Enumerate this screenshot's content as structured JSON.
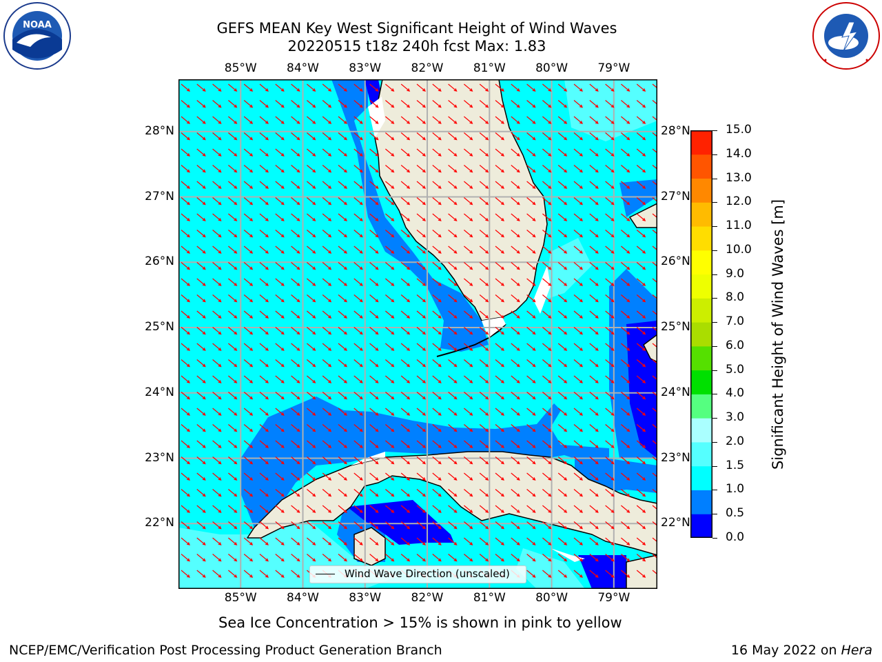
{
  "title_line1": "GEFS MEAN Key West Significant Height of Wind Waves",
  "title_line2": "20220515 t18z 240h fcst   Max: 1.83",
  "logos": {
    "left": {
      "name": "NOAA",
      "ring_text": "NATIONAL OCEANIC AND ATMOSPHERIC ADMINISTRATION",
      "bottom_text": "U.S. DEPARTMENT OF COMMERCE"
    },
    "right": {
      "name": "National Weather Service",
      "ring_text": "NATIONAL WEATHER SERVICE"
    }
  },
  "map": {
    "lon_labels": [
      "85°W",
      "84°W",
      "83°W",
      "82°W",
      "81°W",
      "80°W",
      "79°W"
    ],
    "lat_labels": [
      "28°N",
      "27°N",
      "26°N",
      "25°N",
      "24°N",
      "23°N",
      "22°N"
    ],
    "lon_values": [
      -85,
      -84,
      -83,
      -82,
      -81,
      -80,
      -79
    ],
    "lat_values": [
      28,
      27,
      26,
      25,
      24,
      23,
      22
    ],
    "extent": {
      "lon_min": -86.0,
      "lon_max": -78.3,
      "lat_min": 21.0,
      "lat_max": 28.8
    },
    "arrow_color": "#ff0000",
    "land_color": "#eeecdb",
    "grid_color": "#b0b0b0"
  },
  "colorbar": {
    "label": "Significant Height of Wind Waves [m]",
    "ticks": [
      "0.0",
      "0.5",
      "1.0",
      "1.5",
      "2.0",
      "3.0",
      "4.0",
      "5.0",
      "6.0",
      "7.0",
      "8.0",
      "9.0",
      "10.0",
      "11.0",
      "12.0",
      "13.0",
      "14.0",
      "15.0"
    ],
    "colors": [
      "#0000ff",
      "#007fff",
      "#00ffff",
      "#55ffff",
      "#aaffff",
      "#55ff80",
      "#00e000",
      "#55e000",
      "#aadd00",
      "#ccee00",
      "#eeff00",
      "#ffff00",
      "#ffdd00",
      "#ffbb00",
      "#ff8800",
      "#ff5500",
      "#ff2200"
    ]
  },
  "legend_label": "Wind Wave Direction (unscaled)",
  "sea_ice_note": "Sea Ice Concentration > 15% is shown in pink to yellow",
  "footer_left": "NCEP/EMC/Verification Post Processing Product Generation Branch",
  "footer_date": "16 May 2022 on",
  "footer_machine": "Hera"
}
